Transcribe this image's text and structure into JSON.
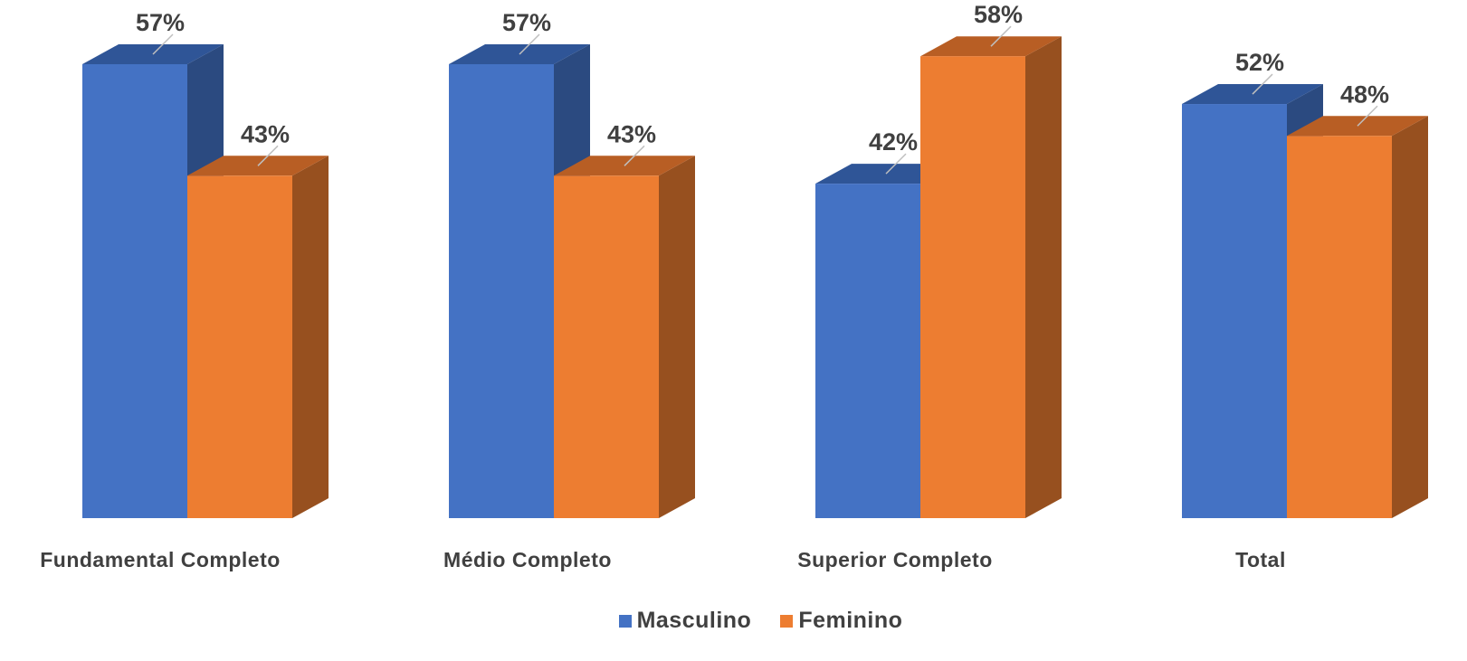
{
  "chart_data": {
    "type": "bar",
    "categories": [
      "Fundamental Completo",
      "Médio Completo",
      "Superior Completo",
      "Total"
    ],
    "series": [
      {
        "name": "Masculino",
        "values": [
          57,
          57,
          42,
          52
        ],
        "labels": [
          "57%",
          "57%",
          "42%",
          "52%"
        ],
        "color": "#4472C4",
        "side_color": "#2B4A80",
        "top_color": "#2F5597"
      },
      {
        "name": "Feminino",
        "values": [
          43,
          43,
          58,
          48
        ],
        "labels": [
          "43%",
          "43%",
          "58%",
          "48%"
        ],
        "color": "#ED7D31",
        "side_color": "#97501F",
        "top_color": "#B85E24"
      }
    ],
    "ylim": [
      0,
      58
    ],
    "grid": false,
    "legend_position": "bottom"
  }
}
